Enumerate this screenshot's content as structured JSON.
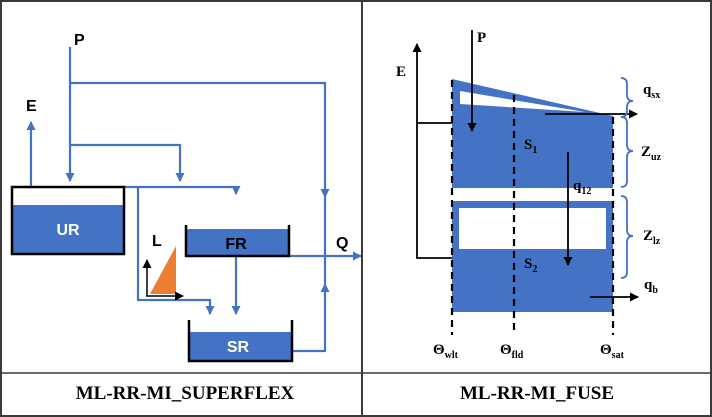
{
  "colors": {
    "blue": "#4472c4",
    "orange": "#ed7d31",
    "black": "#000000",
    "border": "#3a3a3a"
  },
  "superflex": {
    "caption": "ML-RR-MI_SUPERFLEX",
    "labels": {
      "P": "P",
      "E": "E",
      "Q": "Q",
      "L": "L",
      "UR": "UR",
      "FR": "FR",
      "SR": "SR"
    }
  },
  "fuse": {
    "caption": "ML-RR-MI_FUSE",
    "labels": {
      "P": "P",
      "E": "E",
      "S1": {
        "main": "S",
        "sub": "1"
      },
      "S2": {
        "main": "S",
        "sub": "2"
      },
      "q12": {
        "main": "q",
        "sub": "12"
      },
      "qsx": {
        "main": "q",
        "sub": "sx"
      },
      "qb": {
        "main": "q",
        "sub": "b"
      },
      "Zuz": {
        "main": "Z",
        "sub": "uz"
      },
      "Zlz": {
        "main": "Z",
        "sub": "lz"
      },
      "theta_wlt": {
        "main": "Θ",
        "sub": "wlt"
      },
      "theta_fld": {
        "main": "Θ",
        "sub": "fld"
      },
      "theta_sat": {
        "main": "Θ",
        "sub": "sat"
      }
    }
  }
}
